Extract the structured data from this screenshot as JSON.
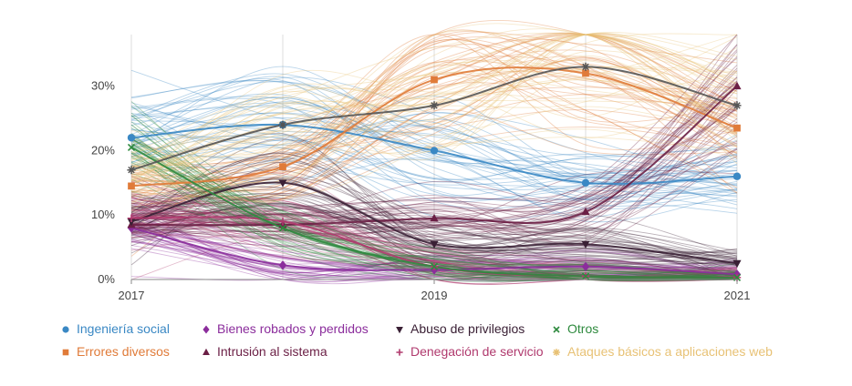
{
  "chart_data": {
    "type": "line",
    "title": "",
    "xlabel": "",
    "ylabel": "",
    "x": [
      2017,
      2018,
      2019,
      2020,
      2021
    ],
    "x_tick_labels": [
      "2017",
      "2019",
      "2021"
    ],
    "y_tick_labels": [
      "0%",
      "10%",
      "20%",
      "30%"
    ],
    "xlim": [
      2017,
      2021
    ],
    "ylim": [
      0,
      38
    ],
    "grid": "vertical",
    "legend_position": "bottom",
    "style_note": "each series drawn as a bundle of many faint uncertainty lines plus a bold mean line with markers",
    "series": [
      {
        "name": "Ingeniería social",
        "marker": "circle",
        "color": "#3a88c4",
        "values": [
          22,
          24,
          20,
          15,
          16
        ]
      },
      {
        "name": "Errores diversos",
        "marker": "square",
        "color": "#e07b39",
        "values": [
          14.5,
          17.5,
          31,
          32,
          23.5
        ]
      },
      {
        "name": "Bienes robados y perdidos",
        "marker": "diamond",
        "color": "#8b2d9c",
        "values": [
          8,
          2.2,
          1.5,
          2,
          0.8
        ]
      },
      {
        "name": "Intrusión al sistema",
        "marker": "triangle-up",
        "color": "#6b1f45",
        "values": [
          8.5,
          8.5,
          9.5,
          10.5,
          30
        ]
      },
      {
        "name": "Abuso de privilegios",
        "marker": "triangle-down",
        "color": "#3a2035",
        "values": [
          9,
          15,
          5.5,
          5.5,
          2.5
        ]
      },
      {
        "name": "Denegación de servicio",
        "marker": "plus",
        "color": "#b03a6e",
        "values": [
          9.5,
          9,
          2,
          0.5,
          0.3
        ]
      },
      {
        "name": "Otros",
        "marker": "x",
        "color": "#2e8a3e",
        "values": [
          20.5,
          8,
          2,
          0.5,
          0.3
        ]
      },
      {
        "name": "Ataques básicos a aplicaciones web",
        "marker": "asterisk",
        "color": "#e8c276",
        "values": [
          17,
          24,
          27,
          33,
          27
        ]
      }
    ],
    "mean_line_series": "Ataques básicos a aplicaciones web",
    "mean_line_color": "#555555"
  }
}
